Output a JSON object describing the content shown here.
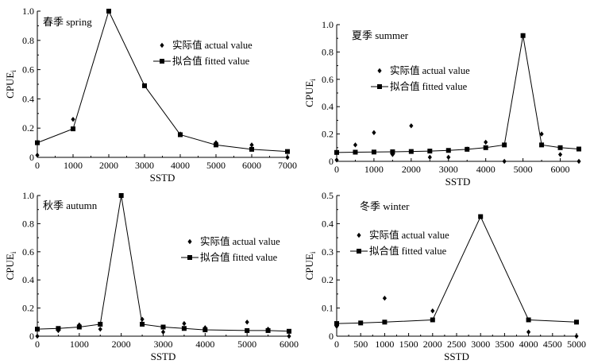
{
  "chart_data": [
    {
      "type": "line",
      "title": "春季 spring",
      "xlabel": "SSTD",
      "ylabel": "CPUE",
      "ylabel_sub": "i",
      "xlim": [
        0,
        7000
      ],
      "ylim": [
        0,
        1.0
      ],
      "xticks": [
        "0",
        "1000",
        "2000",
        "3000",
        "4000",
        "5000",
        "6000",
        "7000"
      ],
      "yticks": [
        "0",
        "0.2",
        "0.4",
        "0.6",
        "0.8",
        "1.0"
      ],
      "legend_position": "upper-right",
      "grid": false,
      "series": [
        {
          "name": "实际值 actual value",
          "marker": "diamond",
          "points": [
            [
              0,
              0.015
            ],
            [
              1000,
              0.26
            ],
            [
              2000,
              1.0
            ],
            [
              3000,
              0.49
            ],
            [
              4000,
              0.16
            ],
            [
              5000,
              0.1
            ],
            [
              6000,
              0.085
            ],
            [
              7000,
              0.0
            ]
          ]
        },
        {
          "name": "拟合值 fitted value",
          "marker": "square",
          "points": [
            [
              0,
              0.1
            ],
            [
              1000,
              0.195
            ],
            [
              2000,
              1.0
            ],
            [
              3000,
              0.49
            ],
            [
              4000,
              0.155
            ],
            [
              5000,
              0.085
            ],
            [
              6000,
              0.055
            ],
            [
              7000,
              0.04
            ]
          ]
        }
      ]
    },
    {
      "type": "line",
      "title": "夏季 summer",
      "xlabel": "SSTD",
      "ylabel": "CPUE",
      "ylabel_sub": "i",
      "xlim": [
        0,
        6500
      ],
      "ylim": [
        0,
        1.0
      ],
      "xticks": [
        "0",
        "1000",
        "2000",
        "3000",
        "4000",
        "5000",
        "6000"
      ],
      "yticks": [
        "0",
        "0.2",
        "0.4",
        "0.6",
        "0.8",
        "1.0"
      ],
      "legend_position": "upper-center",
      "grid": false,
      "series": [
        {
          "name": "实际值 actual value",
          "marker": "diamond",
          "points": [
            [
              0,
              0.01
            ],
            [
              500,
              0.12
            ],
            [
              1000,
              0.21
            ],
            [
              1500,
              0.05
            ],
            [
              2000,
              0.26
            ],
            [
              2500,
              0.03
            ],
            [
              3000,
              0.03
            ],
            [
              3500,
              0.09
            ],
            [
              4000,
              0.14
            ],
            [
              4500,
              0.0
            ],
            [
              5000,
              0.92
            ],
            [
              5500,
              0.2
            ],
            [
              6000,
              0.05
            ],
            [
              6500,
              0.0
            ]
          ]
        },
        {
          "name": "拟合值 fitted value",
          "marker": "square",
          "points": [
            [
              0,
              0.065
            ],
            [
              500,
              0.067
            ],
            [
              1000,
              0.068
            ],
            [
              1500,
              0.07
            ],
            [
              2000,
              0.072
            ],
            [
              2500,
              0.075
            ],
            [
              3000,
              0.08
            ],
            [
              3500,
              0.088
            ],
            [
              4000,
              0.1
            ],
            [
              4500,
              0.12
            ],
            [
              5000,
              0.92
            ],
            [
              5500,
              0.12
            ],
            [
              6000,
              0.1
            ],
            [
              6500,
              0.09
            ]
          ]
        }
      ]
    },
    {
      "type": "line",
      "title": "秋季 autumn",
      "xlabel": "SSTD",
      "ylabel": "CPUE",
      "ylabel_sub": "i",
      "xlim": [
        0,
        6000
      ],
      "ylim": [
        0,
        1.0
      ],
      "xticks": [
        "0",
        "1000",
        "2000",
        "3000",
        "4000",
        "5000",
        "6000"
      ],
      "yticks": [
        "0",
        "0.2",
        "0.4",
        "0.6",
        "0.8",
        "1.0"
      ],
      "legend_position": "right",
      "grid": false,
      "series": [
        {
          "name": "实际值 actual value",
          "marker": "diamond",
          "points": [
            [
              0,
              0.0
            ],
            [
              500,
              0.04
            ],
            [
              1000,
              0.08
            ],
            [
              1500,
              0.05
            ],
            [
              2000,
              1.0
            ],
            [
              2500,
              0.12
            ],
            [
              3000,
              0.03
            ],
            [
              3500,
              0.09
            ],
            [
              4000,
              0.06
            ],
            [
              5000,
              0.1
            ],
            [
              5500,
              0.05
            ],
            [
              6000,
              0.0
            ]
          ]
        },
        {
          "name": "拟合值 fitted value",
          "marker": "square",
          "points": [
            [
              0,
              0.05
            ],
            [
              500,
              0.055
            ],
            [
              1000,
              0.065
            ],
            [
              1500,
              0.085
            ],
            [
              2000,
              1.0
            ],
            [
              2500,
              0.085
            ],
            [
              3000,
              0.065
            ],
            [
              3500,
              0.055
            ],
            [
              4000,
              0.045
            ],
            [
              5000,
              0.04
            ],
            [
              5500,
              0.04
            ],
            [
              6000,
              0.035
            ]
          ]
        }
      ]
    },
    {
      "type": "line",
      "title": "冬季 winter",
      "xlabel": "SSTD",
      "ylabel": "CPUE",
      "ylabel_sub": "i",
      "xlim": [
        0,
        5000
      ],
      "ylim": [
        0,
        0.5
      ],
      "xticks": [
        "0",
        "500",
        "1000",
        "1500",
        "2000",
        "2500",
        "3000",
        "3500",
        "4000",
        "4500",
        "5000"
      ],
      "yticks": [
        "0",
        "0.1",
        "0.2",
        "0.3",
        "0.4",
        "0.5"
      ],
      "legend_position": "upper-left",
      "grid": false,
      "series": [
        {
          "name": "实际值 actual value",
          "marker": "diamond",
          "points": [
            [
              0,
              0.035
            ],
            [
              1000,
              0.135
            ],
            [
              2000,
              0.09
            ],
            [
              3000,
              0.425
            ],
            [
              4000,
              0.015
            ],
            [
              5000,
              0.0
            ]
          ]
        },
        {
          "name": "拟合值 fitted value",
          "marker": "square",
          "points": [
            [
              0,
              0.045
            ],
            [
              500,
              0.047
            ],
            [
              1000,
              0.05
            ],
            [
              2000,
              0.058
            ],
            [
              3000,
              0.425
            ],
            [
              4000,
              0.058
            ],
            [
              5000,
              0.05
            ]
          ]
        }
      ]
    }
  ]
}
